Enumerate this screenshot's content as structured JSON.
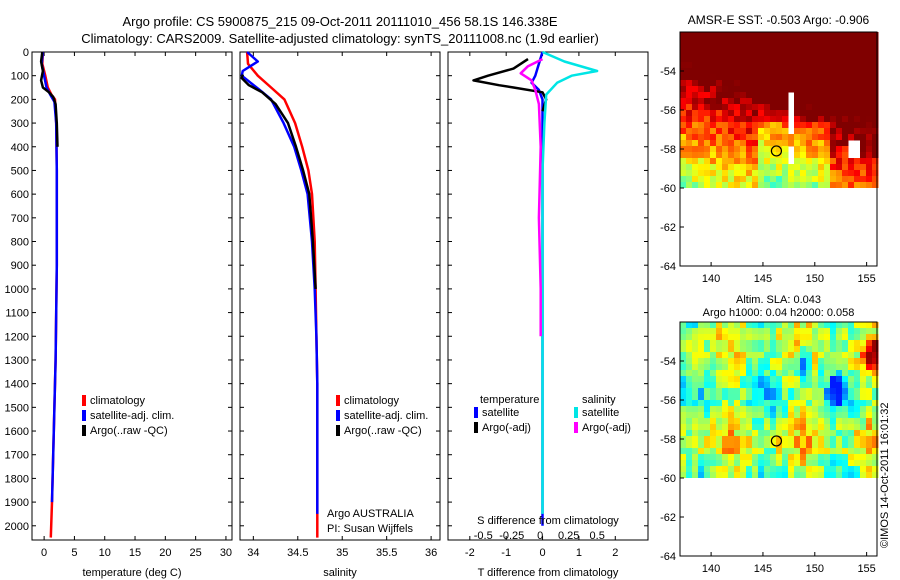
{
  "header": {
    "line1": "Argo profile: CS 5900875_215 09-Oct-2011 20111010_456 58.1S 146.338E",
    "line2": "Climatology: CARS2009. Satellite-adjusted climatology: synTS_20111008.nc (1.9d earlier)"
  },
  "credit": "©IMOS 14-Oct-2011 16:01:32",
  "colors": {
    "climatology": "#ff0000",
    "satellite": "#0000ff",
    "argo": "#000000",
    "salinity_satellite": "#00e5e5",
    "salinity_argo": "#ff00ff"
  },
  "chart_data": [
    {
      "type": "line",
      "id": "temperature",
      "xlabel": "temperature (deg C)",
      "ylabel": "",
      "xlim": [
        -2,
        31
      ],
      "ylim": [
        2060,
        0
      ],
      "xticks": [
        0,
        5,
        10,
        15,
        20,
        25,
        30
      ],
      "yticks": [
        0,
        100,
        200,
        300,
        400,
        500,
        600,
        700,
        800,
        900,
        1000,
        1100,
        1200,
        1300,
        1400,
        1500,
        1600,
        1700,
        1800,
        1900,
        2000
      ],
      "legend": [
        "climatology",
        "satellite-adj. clim.",
        "Argo(..raw -QC)"
      ],
      "series": [
        {
          "name": "climatology",
          "color": "#ff0000",
          "x": [
            -0.2,
            -0.3,
            0.2,
            0.6,
            1.2,
            1.8,
            2.0,
            2.1,
            2.1,
            2.1,
            2.0,
            1.9,
            1.7,
            1.5,
            1.3,
            1.1
          ],
          "y": [
            0,
            50,
            100,
            150,
            180,
            200,
            300,
            500,
            700,
            900,
            1100,
            1300,
            1500,
            1700,
            1900,
            2050
          ]
        },
        {
          "name": "satellite-adj. clim.",
          "color": "#0000ff",
          "x": [
            -0.2,
            -0.4,
            0.0,
            0.4,
            1.0,
            1.7,
            2.0,
            2.1,
            2.1,
            2.1,
            2.0,
            1.9,
            1.7,
            1.5,
            1.3
          ],
          "y": [
            0,
            50,
            100,
            150,
            180,
            210,
            300,
            500,
            700,
            900,
            1100,
            1300,
            1500,
            1700,
            1900
          ]
        },
        {
          "name": "Argo(..raw -QC)",
          "color": "#000000",
          "x": [
            -0.3,
            -0.5,
            -0.2,
            -0.5,
            -0.2,
            0.8,
            1.5,
            1.9,
            2.1,
            2.2
          ],
          "y": [
            0,
            40,
            80,
            120,
            150,
            170,
            190,
            220,
            300,
            400
          ]
        }
      ]
    },
    {
      "type": "line",
      "id": "salinity",
      "xlabel": "salinity",
      "ylabel": "",
      "xlim": [
        33.85,
        36.1
      ],
      "ylim": [
        2060,
        0
      ],
      "xticks": [
        34,
        34.5,
        35,
        35.5,
        36
      ],
      "legend": [
        "climatology",
        "satellite-adj. clim.",
        "Argo(..raw -QC)"
      ],
      "annotation": [
        "Argo AUSTRALIA",
        "PI: Susan Wijffels"
      ],
      "series": [
        {
          "name": "climatology",
          "color": "#ff0000",
          "x": [
            33.93,
            33.94,
            34.05,
            34.2,
            34.35,
            34.47,
            34.55,
            34.62,
            34.66,
            34.69,
            34.7,
            34.71,
            34.72,
            34.72,
            34.72,
            34.72,
            34.72
          ],
          "y": [
            0,
            50,
            100,
            150,
            200,
            300,
            400,
            500,
            600,
            800,
            1000,
            1200,
            1400,
            1600,
            1800,
            2000,
            2050
          ]
        },
        {
          "name": "satellite-adj. clim.",
          "color": "#0000ff",
          "x": [
            33.93,
            34.05,
            33.88,
            33.87,
            33.97,
            34.07,
            34.2,
            34.34,
            34.46,
            34.54,
            34.61,
            34.66,
            34.69,
            34.71,
            34.72,
            34.72,
            34.72,
            34.72
          ],
          "y": [
            0,
            40,
            80,
            100,
            130,
            160,
            200,
            300,
            400,
            500,
            600,
            800,
            1000,
            1200,
            1400,
            1600,
            1800,
            1950
          ]
        },
        {
          "name": "Argo(..raw -QC)",
          "color": "#000000",
          "x": [
            33.88,
            33.87,
            33.95,
            34.1,
            34.25,
            34.39,
            34.48,
            34.56,
            34.63,
            34.67,
            34.7
          ],
          "y": [
            95,
            110,
            140,
            170,
            220,
            300,
            400,
            500,
            600,
            800,
            1000
          ]
        }
      ]
    },
    {
      "type": "line",
      "id": "difference",
      "xlabel": "T difference from climatology",
      "xlabel_top": "S difference from climatology",
      "xlim": [
        -2.6,
        2.9
      ],
      "ylim": [
        2060,
        0
      ],
      "xticks": [
        -2,
        -1,
        0,
        1,
        2
      ],
      "xticks_salinity": [
        -0.5,
        -0.25,
        0,
        0.25,
        0.5
      ],
      "legend_headers": [
        "temperature",
        "salinity"
      ],
      "legend": [
        "satellite",
        "Argo(-adj)",
        "satellite",
        "Argo(-adj)"
      ],
      "series": [
        {
          "name": "temperature satellite",
          "color": "#0000ff",
          "x": [
            0.0,
            -0.1,
            -0.2,
            -0.3,
            -0.1,
            0.0,
            0.0,
            0.0,
            0.0,
            0.0,
            0.0,
            0.0,
            0.0
          ],
          "y": [
            0,
            50,
            100,
            130,
            160,
            200,
            400,
            600,
            800,
            1000,
            1400,
            1800,
            2000
          ]
        },
        {
          "name": "temperature Argo(-adj)",
          "color": "#000000",
          "x": [
            -0.4,
            -0.8,
            -1.5,
            -1.9,
            -1.2,
            -0.8,
            0.0,
            0.1,
            0.0
          ],
          "y": [
            30,
            70,
            100,
            120,
            140,
            150,
            170,
            200,
            250
          ]
        },
        {
          "name": "salinity satellite",
          "color": "#00e5e5",
          "x": [
            0.0,
            0.6,
            1.5,
            0.8,
            0.4,
            0.1,
            0.05,
            0.0,
            0.0,
            0.0,
            0.0,
            0.0,
            0.0
          ],
          "y": [
            0,
            40,
            80,
            100,
            130,
            180,
            300,
            500,
            700,
            900,
            1300,
            1700,
            1950
          ]
        },
        {
          "name": "salinity Argo(-adj)",
          "color": "#ff00ff",
          "x": [
            0.0,
            -0.4,
            -0.6,
            -0.3,
            -0.2,
            -0.1,
            -0.05,
            -0.1,
            -0.05,
            -0.05
          ],
          "y": [
            30,
            60,
            90,
            120,
            160,
            220,
            400,
            700,
            1000,
            1200
          ]
        }
      ]
    },
    {
      "type": "heatmap",
      "id": "sst-map",
      "title": "AMSR-E SST: -0.503 Argo: -0.906",
      "xlim": [
        137,
        156
      ],
      "ylim": [
        -64,
        -52
      ],
      "xticks": [
        140,
        145,
        150,
        155
      ],
      "yticks": [
        -54,
        -56,
        -58,
        -60,
        -62,
        -64
      ],
      "marker": {
        "lon": 146.3,
        "lat": -58.1
      }
    },
    {
      "type": "heatmap",
      "id": "sla-map",
      "title_line1": "Altim. SLA: 0.043",
      "title_line2": "Argo h1000: 0.04 h2000: 0.058",
      "xlim": [
        137,
        156
      ],
      "ylim": [
        -64,
        -52
      ],
      "xticks": [
        140,
        145,
        150,
        155
      ],
      "yticks": [
        -54,
        -56,
        -58,
        -60,
        -62,
        -64
      ],
      "marker": {
        "lon": 146.3,
        "lat": -58.1
      }
    }
  ]
}
